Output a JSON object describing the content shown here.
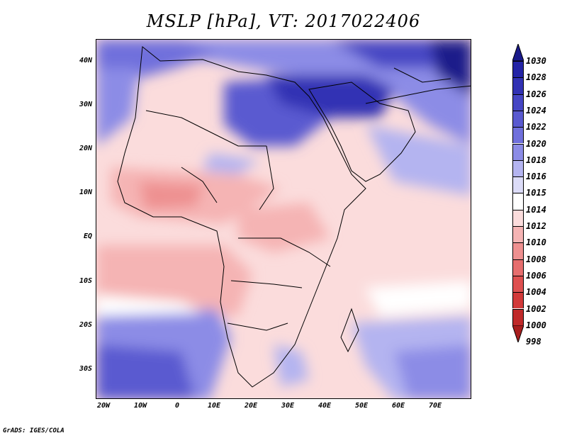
{
  "title": "MSLP [hPa], VT: 2017022406",
  "lat_labels": [
    "40N",
    "30N",
    "20N",
    "10N",
    "EQ",
    "10S",
    "20S",
    "30S"
  ],
  "lon_labels": [
    "20W",
    "10W",
    "0",
    "10E",
    "20E",
    "30E",
    "40E",
    "50E",
    "60E",
    "70E"
  ],
  "colorbar": {
    "levels": [
      "1030",
      "1028",
      "1026",
      "1024",
      "1022",
      "1020",
      "1018",
      "1016",
      "1015",
      "1014",
      "1012",
      "1010",
      "1008",
      "1006",
      "1004",
      "1002",
      "1000",
      "998"
    ],
    "colors": [
      "#1a1a8a",
      "#2424a6",
      "#3232b4",
      "#4646c4",
      "#5a5ad0",
      "#7070dc",
      "#8c8ce6",
      "#b4b4f0",
      "#dcdcf8",
      "#ffffff",
      "#fbdcdc",
      "#f5b4b4",
      "#ee9090",
      "#e66e6e",
      "#de5050",
      "#d23a3a",
      "#c02a2a",
      "#a81e1e"
    ]
  },
  "footer": "GrADS: IGES/COLA"
}
